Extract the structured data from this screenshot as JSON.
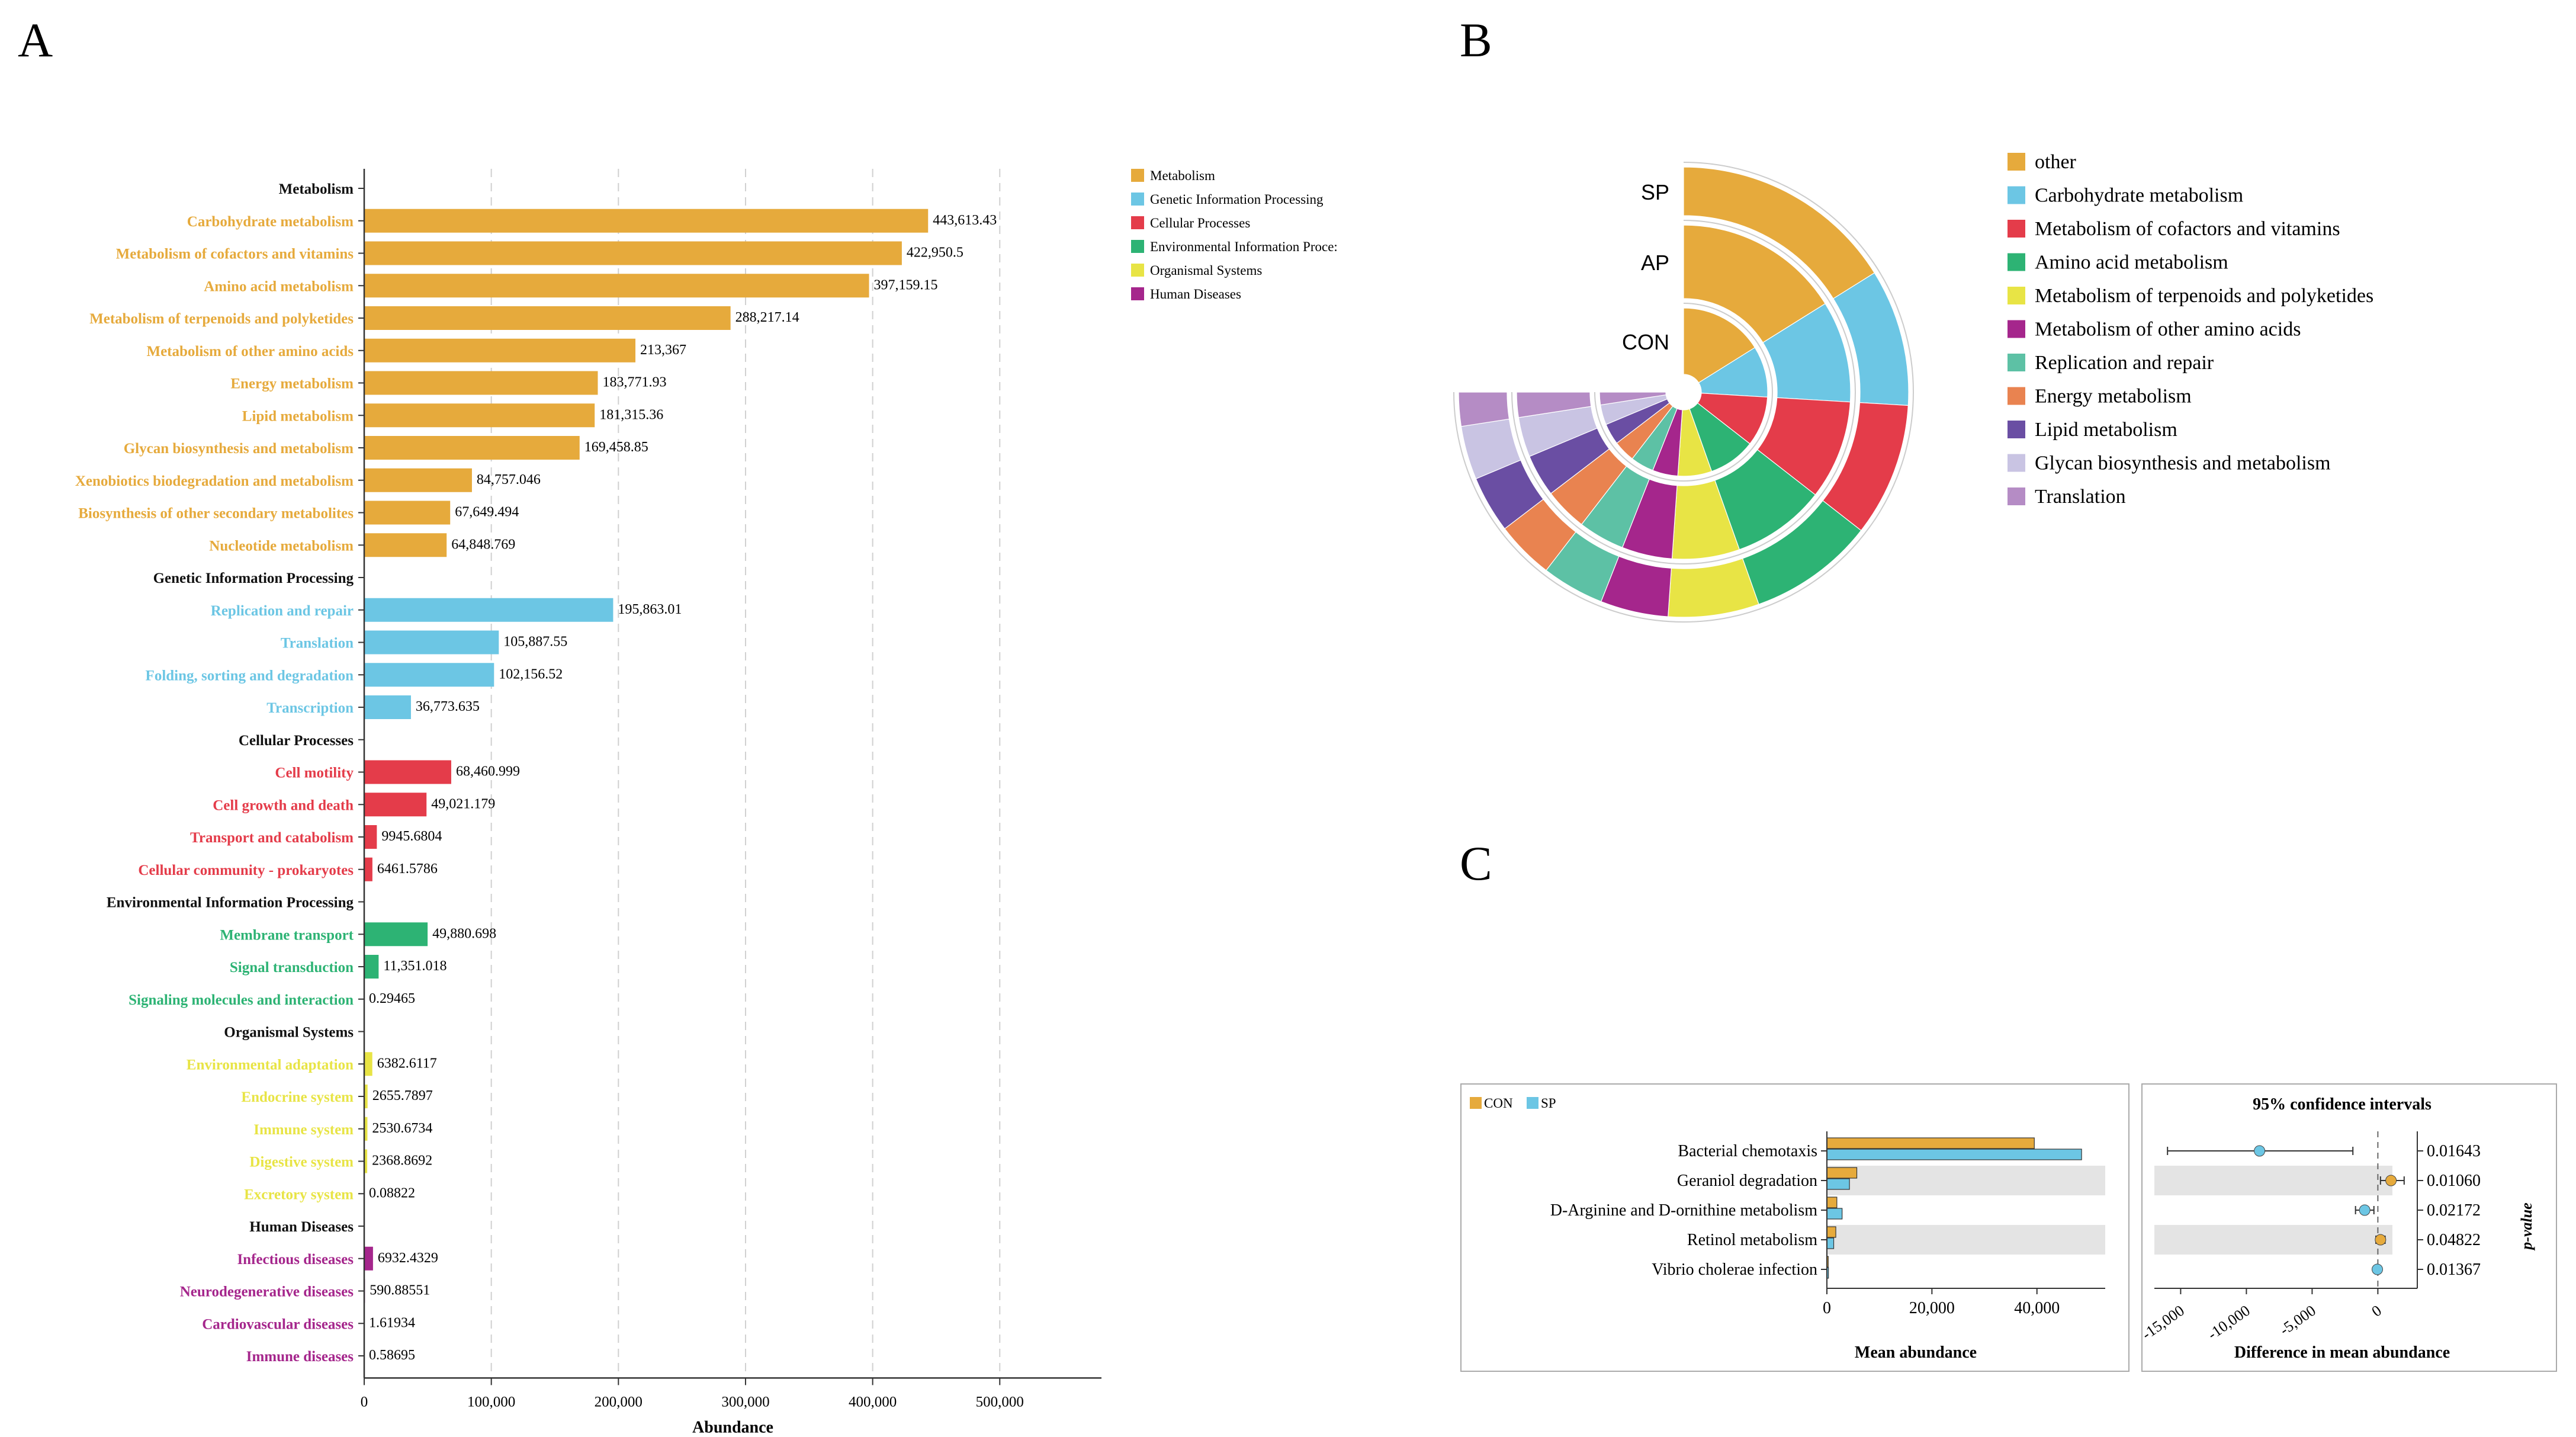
{
  "panel_labels": {
    "a": "A",
    "b": "B",
    "c": "C"
  },
  "colors": {
    "Metabolism": "#E6AA3C",
    "Genetic Information Processing": "#6CC6E4",
    "Cellular Processes": "#E43C4A",
    "Environmental Information Processing": "#2DB374",
    "Organismal Systems": "#E8E445",
    "Human Diseases": "#A5268C",
    "CON": "#E6AA3C",
    "SP": "#6CC6E4"
  },
  "chart_data": [
    {
      "id": "A",
      "type": "bar",
      "orientation": "horizontal",
      "xlabel": "Abundance",
      "xlim": [
        0,
        580000
      ],
      "xticks": [
        0,
        100000,
        200000,
        300000,
        400000,
        500000
      ],
      "xtick_labels": [
        "0",
        "100,000",
        "200,000",
        "300,000",
        "400,000",
        "500,000"
      ],
      "grid": "vertical dashed",
      "legend": [
        "Metabolism",
        "Genetic Information Processing",
        "Cellular Processes",
        "Environmental Information Proce:",
        "Organismal Systems",
        "Human Diseases"
      ],
      "groups": [
        {
          "name": "Metabolism",
          "items": [
            {
              "label": "Carbohydrate metabolism",
              "value": 443613.43,
              "text": "443,613.43"
            },
            {
              "label": "Metabolism of cofactors and vitamins",
              "value": 422950.5,
              "text": "422,950.5"
            },
            {
              "label": "Amino acid metabolism",
              "value": 397159.15,
              "text": "397,159.15"
            },
            {
              "label": "Metabolism of terpenoids and polyketides",
              "value": 288217.14,
              "text": "288,217.14"
            },
            {
              "label": "Metabolism of other amino acids",
              "value": 213367,
              "text": "213,367"
            },
            {
              "label": "Energy metabolism",
              "value": 183771.93,
              "text": "183,771.93"
            },
            {
              "label": "Lipid metabolism",
              "value": 181315.36,
              "text": "181,315.36"
            },
            {
              "label": "Glycan biosynthesis and metabolism",
              "value": 169458.85,
              "text": "169,458.85"
            },
            {
              "label": "Xenobiotics biodegradation and metabolism",
              "value": 84757.046,
              "text": "84,757.046"
            },
            {
              "label": "Biosynthesis of other secondary metabolites",
              "value": 67649.494,
              "text": "67,649.494"
            },
            {
              "label": "Nucleotide metabolism",
              "value": 64848.769,
              "text": "64,848.769"
            }
          ]
        },
        {
          "name": "Genetic Information Processing",
          "items": [
            {
              "label": "Replication and repair",
              "value": 195863.01,
              "text": "195,863.01"
            },
            {
              "label": "Translation",
              "value": 105887.55,
              "text": "105,887.55"
            },
            {
              "label": "Folding, sorting and degradation",
              "value": 102156.52,
              "text": "102,156.52"
            },
            {
              "label": "Transcription",
              "value": 36773.635,
              "text": "36,773.635"
            }
          ]
        },
        {
          "name": "Cellular Processes",
          "items": [
            {
              "label": "Cell motility",
              "value": 68460.999,
              "text": "68,460.999"
            },
            {
              "label": "Cell growth and death",
              "value": 49021.179,
              "text": "49,021.179"
            },
            {
              "label": "Transport and catabolism",
              "value": 9945.6804,
              "text": "9945.6804"
            },
            {
              "label": "Cellular community - prokaryotes",
              "value": 6461.5786,
              "text": "6461.5786"
            }
          ]
        },
        {
          "name": "Environmental Information Processing",
          "items": [
            {
              "label": "Membrane transport",
              "value": 49880.698,
              "text": "49,880.698"
            },
            {
              "label": "Signal transduction",
              "value": 11351.018,
              "text": "11,351.018"
            },
            {
              "label": "Signaling molecules and interaction",
              "value": 0.29465,
              "text": "0.29465"
            }
          ]
        },
        {
          "name": "Organismal Systems",
          "items": [
            {
              "label": "Environmental adaptation",
              "value": 6382.6117,
              "text": "6382.6117"
            },
            {
              "label": "Endocrine system",
              "value": 2655.7897,
              "text": "2655.7897"
            },
            {
              "label": "Immune system",
              "value": 2530.6734,
              "text": "2530.6734"
            },
            {
              "label": "Digestive system",
              "value": 2368.8692,
              "text": "2368.8692"
            },
            {
              "label": "Excretory system",
              "value": 0.08822,
              "text": "0.08822"
            }
          ]
        },
        {
          "name": "Human Diseases",
          "items": [
            {
              "label": "Infectious diseases",
              "value": 6932.4329,
              "text": "6932.4329"
            },
            {
              "label": "Neurodegenerative diseases",
              "value": 590.88551,
              "text": "590.88551"
            },
            {
              "label": "Cardiovascular diseases",
              "value": 1.61934,
              "text": "1.61934"
            },
            {
              "label": "Immune diseases",
              "value": 0.58695,
              "text": "0.58695"
            }
          ]
        }
      ]
    },
    {
      "id": "B",
      "type": "pie",
      "subtype": "radial stacked rings (270 degree sweep)",
      "rings": [
        "CON",
        "AP",
        "SP"
      ],
      "categories": [
        "other",
        "Carbohydrate metabolism",
        "Metabolism of cofactors and vitamins",
        "Amino acid metabolism",
        "Metabolism of terpenoids and polyketides",
        "Metabolism of other amino acids",
        "Replication and repair",
        "Energy metabolism",
        "Lipid metabolism",
        "Glycan biosynthesis and metabolism",
        "Translation"
      ],
      "colors": [
        "#E6AA3C",
        "#6CC6E4",
        "#E43C4A",
        "#2DB374",
        "#E8E445",
        "#A5268C",
        "#5DC1A5",
        "#E98350",
        "#6A4EA3",
        "#C9C4E3",
        "#B58CC5"
      ],
      "values": [
        20.5,
        12.5,
        12.2,
        11.5,
        8.3,
        6.2,
        5.7,
        5.3,
        5.2,
        4.9,
        3.1
      ]
    },
    {
      "id": "C",
      "type": "bar",
      "subtype": "extended error bar",
      "legend": [
        "CON",
        "SP"
      ],
      "categories": [
        "Bacterial chemotaxis",
        "Geraniol degradation",
        "D-Arginine and D-ornithine metabolism",
        "Retinol metabolism",
        "Vibrio cholerae infection"
      ],
      "series": [
        {
          "name": "CON",
          "values": [
            39500,
            5700,
            1900,
            1700,
            260
          ]
        },
        {
          "name": "SP",
          "values": [
            48500,
            4300,
            2900,
            1300,
            300
          ]
        }
      ],
      "xlabel": "Mean abundance",
      "xlim": [
        0,
        53000
      ],
      "xticks": [
        0,
        20000,
        40000
      ],
      "xtick_labels": [
        "0",
        "20,000",
        "40,000"
      ],
      "ci_title": "95% confidence intervals",
      "ci_xlabel": "Difference in mean abundance",
      "ci_xlim": [
        -17000,
        3000
      ],
      "ci_xticks": [
        -15000,
        -10000,
        -5000,
        0
      ],
      "ci_xtick_labels": [
        "-15,000",
        "-10,000",
        "-5,000",
        "0"
      ],
      "diff": [
        -9000,
        1000,
        -1000,
        200,
        -40
      ],
      "ci_low": [
        -16000,
        200,
        -1700,
        -150,
        -200
      ],
      "ci_high": [
        -1900,
        2000,
        -300,
        550,
        100
      ],
      "point_colors": [
        "SP",
        "CON",
        "SP",
        "CON",
        "SP"
      ],
      "p_values": [
        "0.01643",
        "0.01060",
        "0.02172",
        "0.04822",
        "0.01367"
      ],
      "p_label": "p-value"
    }
  ]
}
